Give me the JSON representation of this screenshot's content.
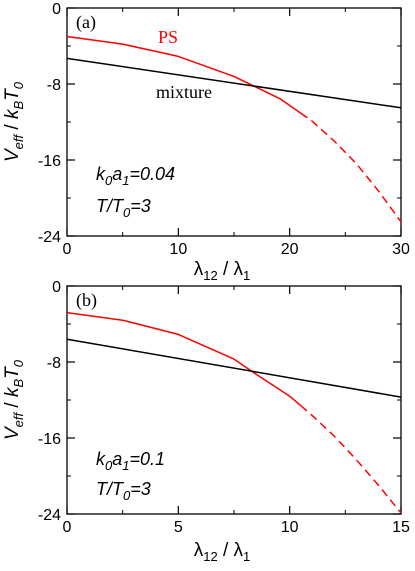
{
  "chart_data": [
    {
      "type": "line",
      "panel_label": "(a)",
      "xlim": [
        0,
        30
      ],
      "ylim": [
        -24,
        0
      ],
      "xticks": [
        "0",
        "10",
        "20",
        "30"
      ],
      "yticks": [
        "0",
        "-8",
        "-16",
        "-24"
      ],
      "xlabel": {
        "main": "λ",
        "sub": "12",
        "sep": " / ",
        "main2": "λ",
        "sub2": "1"
      },
      "ylabel": {
        "p1": "V",
        "s1": "eff",
        "sep": " / ",
        "p2": "k",
        "s2": "B",
        "p3": "T",
        "s3": "0"
      },
      "annotations": [
        {
          "p1": "k",
          "s1": "0",
          "p2": "a",
          "s2": "1",
          "rest": "=0.04"
        },
        {
          "p1": "T/T",
          "s1": "0",
          "rest": "=3"
        }
      ],
      "series": [
        {
          "name": "PS",
          "color": "#ff0000",
          "x": [
            0,
            5,
            10,
            15,
            19.2,
            22,
            24,
            26,
            28,
            30
          ],
          "y": [
            -3.0,
            -3.8,
            -5.1,
            -7.2,
            -9.6,
            -11.9,
            -14.0,
            -16.4,
            -19.3,
            -22.5
          ],
          "dashed_from_x": 21
        },
        {
          "name": "mixture",
          "color": "#000000",
          "x": [
            0,
            30
          ],
          "y": [
            -5.3,
            -10.5
          ]
        }
      ]
    },
    {
      "type": "line",
      "panel_label": "(b)",
      "xlim": [
        0,
        15
      ],
      "ylim": [
        -24,
        0
      ],
      "xticks": [
        "0",
        "5",
        "10",
        "15"
      ],
      "yticks": [
        "0",
        "-8",
        "-16",
        "-24"
      ],
      "xlabel": {
        "main": "λ",
        "sub": "12",
        "sep": " / ",
        "main2": "λ",
        "sub2": "1"
      },
      "ylabel": {
        "p1": "V",
        "s1": "eff",
        "sep": " / ",
        "p2": "k",
        "s2": "B",
        "p3": "T",
        "s3": "0"
      },
      "annotations": [
        {
          "p1": "k",
          "s1": "0",
          "p2": "a",
          "s2": "1",
          "rest": "=0.1"
        },
        {
          "p1": "T/T",
          "s1": "0",
          "rest": "=3"
        }
      ],
      "series": [
        {
          "x": [
            0,
            2.5,
            5,
            7.5,
            8.5,
            10,
            11,
            12,
            13,
            14,
            15
          ],
          "y": [
            -2.8,
            -3.6,
            -5.1,
            -7.7,
            -9.3,
            -11.6,
            -13.6,
            -15.8,
            -18.3,
            -21.0,
            -23.9
          ],
          "color": "#ff0000",
          "dashed_from_x": 10.5
        },
        {
          "x": [
            0,
            15
          ],
          "y": [
            -5.6,
            -11.7
          ],
          "color": "#000000"
        }
      ]
    }
  ]
}
